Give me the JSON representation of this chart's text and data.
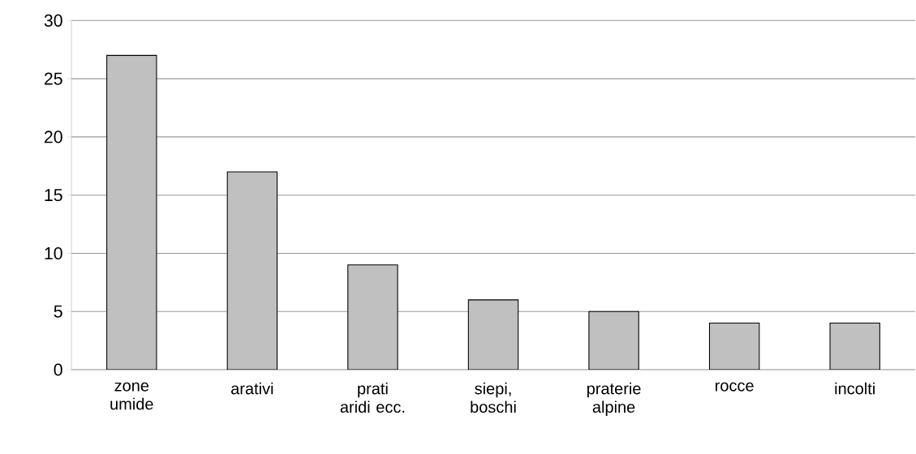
{
  "chart_data": {
    "type": "bar",
    "categories": [
      "zone umide",
      "arativi",
      "prati aridi ecc.",
      "siepi, boschi",
      "praterie alpine",
      "rocce",
      "incolti"
    ],
    "values": [
      27,
      17,
      9,
      6,
      5,
      4,
      4
    ],
    "color": "#c0c0c0",
    "ylim": [
      0,
      30
    ],
    "yticks": [
      0,
      5,
      10,
      15,
      20,
      25,
      30
    ],
    "grid": "y"
  }
}
